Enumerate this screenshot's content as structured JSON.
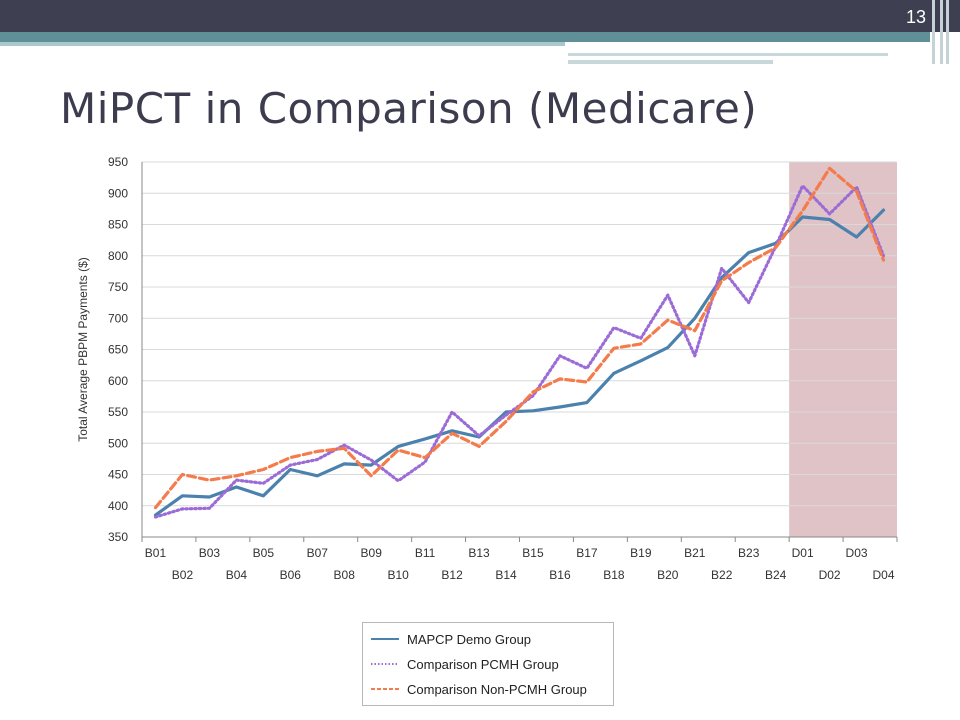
{
  "slide": {
    "number": "13",
    "title": "MiPCT in Comparison (Medicare)"
  },
  "colors": {
    "header": "#3f3f52",
    "accent": "#5f8f97",
    "shade": "#e0c3c6",
    "mapcp": "#4b82ad",
    "pcmh": "#9b6cd6",
    "nonpcmh": "#f47b4b"
  },
  "chart_data": {
    "type": "line",
    "title": "",
    "xlabel": "",
    "ylabel": "Total Average PBPM Payments ($)",
    "ylim": [
      350,
      950
    ],
    "yticks": [
      350,
      400,
      450,
      500,
      550,
      600,
      650,
      700,
      750,
      800,
      850,
      900,
      950
    ],
    "grid": true,
    "legend": "bottom",
    "x": [
      "B01",
      "B02",
      "B03",
      "B04",
      "B05",
      "B06",
      "B07",
      "B08",
      "B09",
      "B10",
      "B11",
      "B12",
      "B13",
      "B14",
      "B15",
      "B16",
      "B17",
      "B18",
      "B19",
      "B20",
      "B21",
      "B22",
      "B23",
      "B24",
      "D01",
      "D02",
      "D03",
      "D04"
    ],
    "shaded_range": [
      "D01",
      "D04"
    ],
    "series": [
      {
        "name": "MAPCP Demo Group",
        "style": "solid",
        "values": [
          385,
          416,
          414,
          430,
          416,
          458,
          448,
          467,
          465,
          495,
          507,
          520,
          510,
          550,
          552,
          558,
          565,
          612,
          632,
          653,
          700,
          765,
          805,
          820,
          862,
          858,
          830,
          873
        ]
      },
      {
        "name": "Comparison PCMH Group",
        "style": "dotted",
        "values": [
          382,
          395,
          396,
          441,
          436,
          465,
          474,
          497,
          473,
          440,
          470,
          550,
          512,
          545,
          576,
          640,
          620,
          685,
          668,
          737,
          640,
          780,
          725,
          815,
          912,
          867,
          910,
          800
        ]
      },
      {
        "name": "Comparison Non-PCMH Group",
        "style": "dashed",
        "values": [
          397,
          450,
          441,
          448,
          458,
          477,
          487,
          492,
          448,
          489,
          477,
          516,
          495,
          535,
          582,
          603,
          598,
          652,
          659,
          697,
          680,
          760,
          789,
          813,
          872,
          940,
          903,
          793
        ]
      }
    ]
  }
}
